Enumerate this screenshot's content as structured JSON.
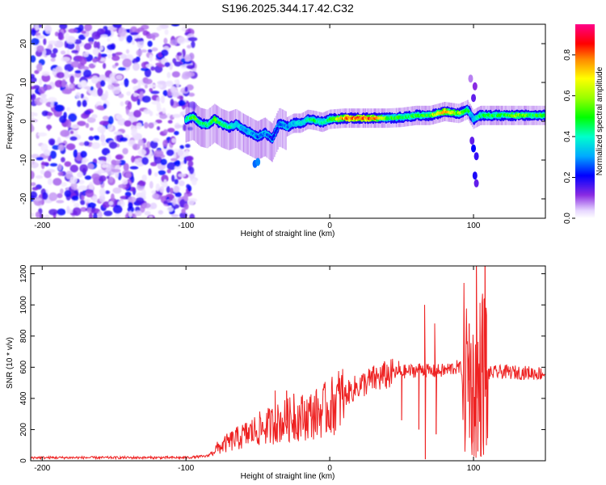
{
  "chart_data": [
    {
      "type": "heatmap",
      "title": "S196.2025.344.17.42.C32",
      "xlabel": "Height of straight line (km)",
      "ylabel": "Frequency (Hz)",
      "xlim": [
        -208,
        150
      ],
      "ylim": [
        -25,
        25
      ],
      "xticks": [
        -200,
        -100,
        0,
        100
      ],
      "yticks": [
        -20,
        -10,
        0,
        10,
        20
      ],
      "noise_region_x": [
        -208,
        -94
      ],
      "ridge": {
        "x": [
          -100,
          -95,
          -90,
          -85,
          -80,
          -75,
          -70,
          -65,
          -60,
          -55,
          -50,
          -45,
          -40,
          -35,
          -30,
          -25,
          -20,
          -15,
          -10,
          -5,
          0,
          10,
          20,
          30,
          40,
          50,
          60,
          70,
          80,
          90,
          96,
          100,
          105,
          110,
          120,
          130,
          140,
          150
        ],
        "freq": [
          0.5,
          1.2,
          -0.5,
          -1.0,
          0.5,
          -0.8,
          -1.5,
          -0.8,
          -2.0,
          -3.0,
          -4.0,
          -3.0,
          -4.5,
          -0.5,
          -1.5,
          -0.5,
          -0.5,
          0.5,
          0.2,
          -0.3,
          0.5,
          0.8,
          0.8,
          0.8,
          0.8,
          1.0,
          1.5,
          1.5,
          2.5,
          2.0,
          3.0,
          0.5,
          1.5,
          1.5,
          1.5,
          1.5,
          1.5,
          1.5
        ],
        "amplitude": [
          0.45,
          0.55,
          0.5,
          0.45,
          0.6,
          0.5,
          0.45,
          0.4,
          0.3,
          0.35,
          0.25,
          0.3,
          0.2,
          0.25,
          0.3,
          0.35,
          0.4,
          0.45,
          0.45,
          0.45,
          0.5,
          0.8,
          0.85,
          0.85,
          0.5,
          0.5,
          0.5,
          0.55,
          0.75,
          0.6,
          0.5,
          0.3,
          0.5,
          0.5,
          0.5,
          0.6,
          0.5,
          0.5
        ]
      }
    },
    {
      "type": "colorbar",
      "label": "Normalized spectral amplitude",
      "range": [
        0,
        0.95
      ],
      "ticks": [
        0.0,
        0.2,
        0.4,
        0.6,
        0.8
      ],
      "tick_labels": [
        "0.0",
        "0.2",
        "0.4",
        "0.6",
        "0.8"
      ]
    },
    {
      "type": "line",
      "title": "",
      "xlabel": "Height of straight line (km)",
      "ylabel": "SNR (10 * v/v)",
      "xlim": [
        -208,
        150
      ],
      "ylim": [
        0,
        1250
      ],
      "xticks": [
        -200,
        -100,
        0,
        100
      ],
      "yticks": [
        0,
        200,
        400,
        600,
        800,
        1000,
        1200
      ],
      "color": "#ee2222",
      "envelope": {
        "x": [
          -208,
          -100,
          -85,
          -80,
          -70,
          -60,
          -50,
          -40,
          -30,
          -20,
          -10,
          0,
          10,
          20,
          30,
          40,
          50,
          60,
          65,
          70,
          80,
          88,
          92,
          95,
          100,
          105,
          108,
          110,
          120,
          150
        ],
        "mid": [
          20,
          20,
          30,
          70,
          120,
          160,
          200,
          230,
          260,
          280,
          300,
          340,
          420,
          480,
          520,
          550,
          570,
          580,
          590,
          570,
          580,
          600,
          590,
          560,
          450,
          550,
          600,
          560,
          570,
          560
        ]
      },
      "spikes": [
        {
          "x": -38,
          "y": 450
        },
        {
          "x": -30,
          "y": 450
        },
        {
          "x": -25,
          "y": 430
        },
        {
          "x": 48,
          "y": 640
        },
        {
          "x": 50,
          "y": 260
        },
        {
          "x": 62,
          "y": 200
        },
        {
          "x": 66,
          "y": 1000
        },
        {
          "x": 66.5,
          "y": 10
        },
        {
          "x": 73,
          "y": 880
        },
        {
          "x": 74,
          "y": 170
        },
        {
          "x": 97,
          "y": 880
        },
        {
          "x": 99,
          "y": 110
        },
        {
          "x": 102,
          "y": 1250
        },
        {
          "x": 103,
          "y": 60
        },
        {
          "x": 106,
          "y": 1020
        },
        {
          "x": 108,
          "y": 1250
        },
        {
          "x": 109,
          "y": 100
        }
      ]
    }
  ]
}
